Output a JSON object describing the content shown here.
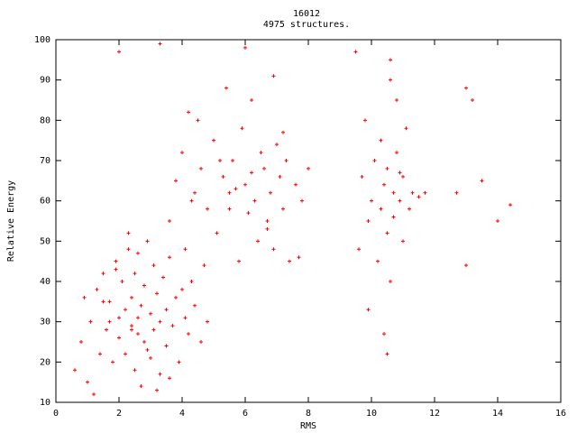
{
  "chart_data": {
    "type": "scatter",
    "title": "16012",
    "subtitle": "4975 structures.",
    "x_label": "RMS",
    "y_label": "Relative Energy",
    "color": "#ff0000",
    "xlim": [
      0,
      16
    ],
    "xticks": [
      0,
      2,
      4,
      6,
      8,
      10,
      12,
      14,
      16
    ],
    "ylim": [
      10,
      100
    ],
    "yticks": [
      10,
      20,
      30,
      40,
      50,
      60,
      70,
      80,
      90,
      100
    ],
    "x": [
      0.6,
      0.8,
      1.0,
      1.1,
      1.3,
      1.4,
      1.5,
      1.6,
      1.7,
      1.8,
      1.9,
      2.0,
      2.0,
      2.1,
      2.2,
      2.2,
      2.3,
      2.4,
      2.4,
      2.5,
      2.5,
      2.6,
      2.6,
      2.7,
      2.7,
      2.8,
      2.8,
      2.9,
      3.0,
      3.0,
      3.1,
      3.1,
      3.2,
      3.3,
      3.3,
      3.4,
      3.5,
      3.5,
      3.6,
      3.7,
      3.8,
      3.9,
      4.0,
      4.1,
      4.2,
      4.4,
      4.6,
      4.8,
      1.2,
      1.5,
      2.3,
      2.9,
      3.6,
      1.9,
      2.6,
      3.2,
      4.3,
      0.9,
      1.7,
      2.4,
      3.6,
      3.8,
      4.0,
      4.1,
      4.3,
      4.5,
      4.6,
      4.8,
      5.0,
      5.1,
      5.3,
      5.4,
      5.5,
      5.6,
      5.8,
      5.9,
      6.0,
      6.1,
      6.2,
      6.3,
      6.4,
      6.5,
      6.6,
      6.7,
      6.8,
      6.9,
      7.0,
      7.1,
      7.2,
      7.3,
      7.4,
      7.6,
      7.8,
      8.0,
      4.2,
      4.7,
      5.2,
      5.7,
      6.2,
      6.7,
      7.2,
      7.7,
      4.4,
      5.5,
      6.9,
      9.6,
      9.7,
      9.8,
      9.9,
      10.0,
      10.1,
      10.2,
      10.3,
      10.3,
      10.4,
      10.5,
      10.5,
      10.6,
      10.6,
      10.7,
      10.7,
      10.8,
      10.8,
      10.9,
      11.0,
      11.0,
      11.1,
      11.2,
      11.3,
      11.5,
      9.9,
      10.4,
      10.6,
      10.9,
      10.5,
      2.0,
      3.3,
      6.0,
      9.5,
      13.0,
      13.2,
      13.5,
      14.0,
      14.4,
      12.7,
      13.0,
      11.7
    ],
    "values": [
      18,
      25,
      15,
      30,
      38,
      22,
      42,
      28,
      35,
      20,
      45,
      31,
      26,
      40,
      33,
      22,
      48,
      29,
      36,
      18,
      42,
      31,
      27,
      34,
      14,
      39,
      25,
      50,
      32,
      21,
      44,
      28,
      37,
      30,
      17,
      41,
      33,
      24,
      46,
      29,
      36,
      20,
      38,
      31,
      27,
      34,
      25,
      30,
      12,
      35,
      52,
      23,
      16,
      43,
      47,
      13,
      40,
      36,
      30,
      28,
      55,
      65,
      72,
      48,
      60,
      80,
      68,
      58,
      75,
      52,
      66,
      88,
      62,
      70,
      45,
      78,
      64,
      57,
      85,
      60,
      50,
      72,
      68,
      55,
      62,
      48,
      74,
      66,
      58,
      70,
      45,
      64,
      60,
      68,
      82,
      44,
      70,
      63,
      67,
      53,
      77,
      46,
      62,
      58,
      91,
      48,
      66,
      80,
      55,
      60,
      70,
      45,
      58,
      75,
      64,
      52,
      68,
      90,
      40,
      62,
      56,
      72,
      85,
      60,
      50,
      66,
      78,
      58,
      62,
      61,
      33,
      27,
      95,
      67,
      22,
      97,
      99,
      98,
      97,
      88,
      85,
      65,
      55,
      59,
      62,
      44,
      62
    ]
  }
}
